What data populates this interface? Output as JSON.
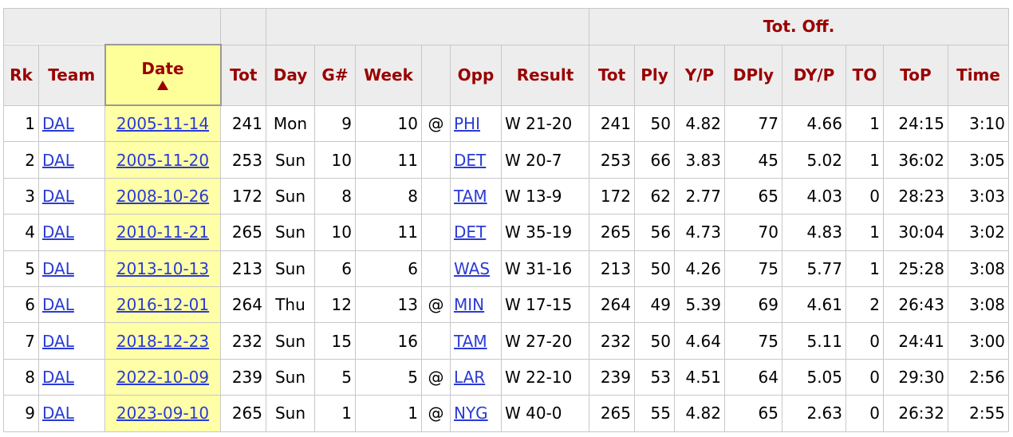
{
  "table": {
    "group_header": "Tot. Off.",
    "headers": [
      "Rk",
      "Team",
      "Date",
      "Tot",
      "Day",
      "G#",
      "Week",
      null,
      "Opp",
      "Result",
      "Tot",
      "Ply",
      "Y/P",
      "DPly",
      "DY/P",
      "TO",
      "ToP",
      "Time"
    ],
    "rows": [
      [
        1,
        "DAL",
        "2005-11-14",
        241,
        "Mon",
        9,
        10,
        "@",
        "PHI",
        "W 21-20",
        241,
        50,
        4.82,
        77,
        4.66,
        1,
        "24:15",
        "3:10"
      ],
      [
        2,
        "DAL",
        "2005-11-20",
        253,
        "Sun",
        10,
        11,
        null,
        "DET",
        "W 20-7",
        253,
        66,
        3.83,
        45,
        5.02,
        1,
        "36:02",
        "3:05"
      ],
      [
        3,
        "DAL",
        "2008-10-26",
        172,
        "Sun",
        8,
        8,
        null,
        "TAM",
        "W 13-9",
        172,
        62,
        2.77,
        65,
        4.03,
        0,
        "28:23",
        "3:03"
      ],
      [
        4,
        "DAL",
        "2010-11-21",
        265,
        "Sun",
        10,
        11,
        null,
        "DET",
        "W 35-19",
        265,
        56,
        4.73,
        70,
        4.83,
        1,
        "30:04",
        "3:02"
      ],
      [
        5,
        "DAL",
        "2013-10-13",
        213,
        "Sun",
        6,
        6,
        null,
        "WAS",
        "W 31-16",
        213,
        50,
        4.26,
        75,
        5.77,
        1,
        "25:28",
        "3:08"
      ],
      [
        6,
        "DAL",
        "2016-12-01",
        264,
        "Thu",
        12,
        13,
        "@",
        "MIN",
        "W 17-15",
        264,
        49,
        5.39,
        69,
        4.61,
        2,
        "26:43",
        "3:08"
      ],
      [
        7,
        "DAL",
        "2018-12-23",
        232,
        "Sun",
        15,
        16,
        null,
        "TAM",
        "W 27-20",
        232,
        50,
        4.64,
        75,
        5.11,
        0,
        "24:41",
        "3:00"
      ],
      [
        8,
        "DAL",
        "2022-10-09",
        239,
        "Sun",
        5,
        5,
        "@",
        "LAR",
        "W 22-10",
        239,
        53,
        4.51,
        64,
        5.05,
        0,
        "29:30",
        "2:56"
      ],
      [
        9,
        "DAL",
        "2023-09-10",
        265,
        "Sun",
        1,
        1,
        "@",
        "NYG",
        "W 40-0",
        265,
        55,
        4.82,
        65,
        2.63,
        0,
        "26:32",
        "2:55"
      ]
    ]
  }
}
